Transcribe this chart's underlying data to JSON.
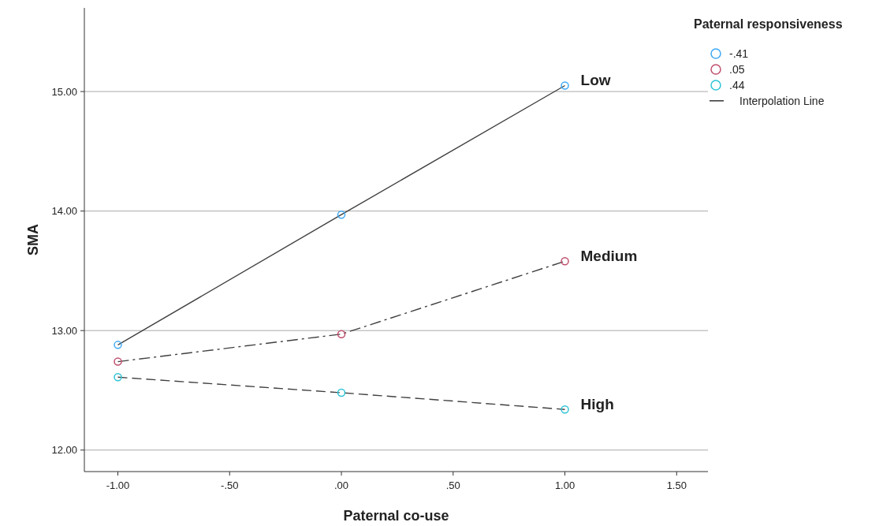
{
  "chart_data": {
    "type": "line",
    "xlabel": "Paternal co-use",
    "ylabel": "SMA",
    "legend_title": "Paternal responsiveness",
    "x": [
      -1,
      0,
      1
    ],
    "series": [
      {
        "name": "-.41",
        "color": "#3fa9f5",
        "values": [
          12.88,
          13.97,
          15.05
        ],
        "line_style": "solid"
      },
      {
        "name": ".05",
        "color": "#c0506e",
        "values": [
          12.74,
          12.97,
          13.58
        ],
        "line_style": "dashdot"
      },
      {
        "name": ".44",
        "color": "#2ec4d6",
        "values": [
          12.61,
          12.48,
          12.34
        ],
        "line_style": "dashed"
      }
    ],
    "xlim": [
      -1.15,
      1.64
    ],
    "ylim": [
      11.82,
      15.7
    ],
    "xticks": [
      {
        "value": -1,
        "label": "-1.00"
      },
      {
        "value": -0.5,
        "label": "-.50"
      },
      {
        "value": 0,
        "label": ".00"
      },
      {
        "value": 0.5,
        "label": ".50"
      },
      {
        "value": 1,
        "label": "1.00"
      },
      {
        "value": 1.5,
        "label": "1.50"
      }
    ],
    "yticks": [
      {
        "value": 12,
        "label": "12.00"
      },
      {
        "value": 13,
        "label": "13.00"
      },
      {
        "value": 14,
        "label": "14.00"
      },
      {
        "value": 15,
        "label": "15.00"
      }
    ],
    "grid": "y",
    "marker": "circle",
    "legend": "top right",
    "annotations": [
      "Low",
      "Medium",
      "High",
      "Interpolation Line"
    ]
  }
}
